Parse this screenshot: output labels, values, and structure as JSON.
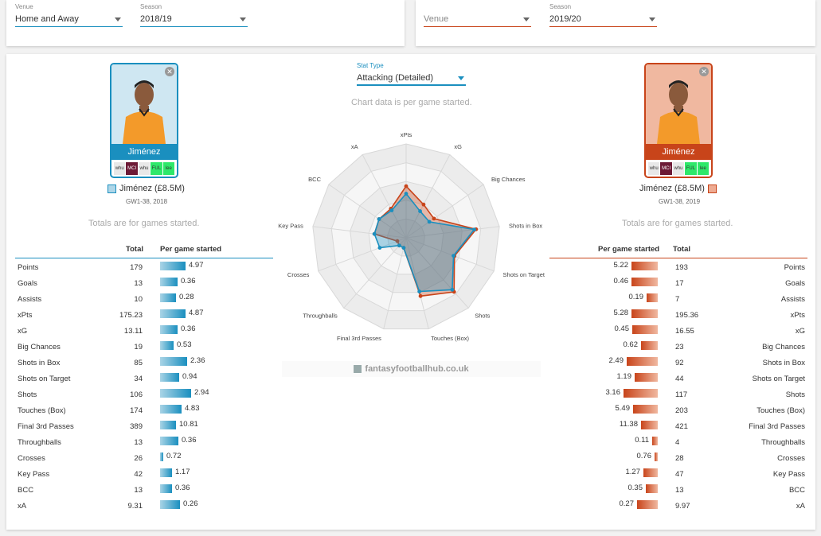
{
  "top_left": {
    "venue_label": "Venue",
    "venue_value": "Home and Away",
    "season_label": "Season",
    "season_value": "2018/19"
  },
  "top_right": {
    "venue_label": "",
    "venue_value": "Venue",
    "season_label": "Season",
    "season_value": "2019/20"
  },
  "stat_type": {
    "label": "Stat Type",
    "value": "Attacking (Detailed)"
  },
  "chart_note": "Chart data is per game started.",
  "watermark": "fantasyfootballhub.co.uk",
  "left_player": {
    "name": "Jiménez",
    "legend": "Jiménez (£8.5M)",
    "range": "GW1-38, 2018",
    "fixtures": [
      "whu",
      "MCI",
      "whu",
      "FUL",
      "lee"
    ],
    "color": "#1a8fbf"
  },
  "right_player": {
    "name": "Jiménez",
    "legend": "Jiménez (£8.5M)",
    "range": "GW1-38, 2019",
    "fixtures": [
      "whu",
      "MCI",
      "whu",
      "FUL",
      "lee"
    ],
    "color": "#c8441a"
  },
  "totals_note": "Totals are for games started.",
  "headers": {
    "total": "Total",
    "per_game": "Per game started"
  },
  "left_rows": [
    {
      "stat": "Points",
      "total": "179",
      "pg": "4.97",
      "frac": 0.46
    },
    {
      "stat": "Goals",
      "total": "13",
      "pg": "0.36",
      "frac": 0.32
    },
    {
      "stat": "Assists",
      "total": "10",
      "pg": "0.28",
      "frac": 0.29
    },
    {
      "stat": "xPts",
      "total": "175.23",
      "pg": "4.87",
      "frac": 0.45
    },
    {
      "stat": "xG",
      "total": "13.11",
      "pg": "0.36",
      "frac": 0.32
    },
    {
      "stat": "Big Chances",
      "total": "19",
      "pg": "0.53",
      "frac": 0.24
    },
    {
      "stat": "Shots in Box",
      "total": "85",
      "pg": "2.36",
      "frac": 0.49
    },
    {
      "stat": "Shots on Target",
      "total": "34",
      "pg": "0.94",
      "frac": 0.34
    },
    {
      "stat": "Shots",
      "total": "106",
      "pg": "2.94",
      "frac": 0.56
    },
    {
      "stat": "Touches (Box)",
      "total": "174",
      "pg": "4.83",
      "frac": 0.38
    },
    {
      "stat": "Final 3rd Passes",
      "total": "389",
      "pg": "10.81",
      "frac": 0.28
    },
    {
      "stat": "Throughballs",
      "total": "13",
      "pg": "0.36",
      "frac": 0.33
    },
    {
      "stat": "Crosses",
      "total": "26",
      "pg": "0.72",
      "frac": 0.06
    },
    {
      "stat": "Key Pass",
      "total": "42",
      "pg": "1.17",
      "frac": 0.22
    },
    {
      "stat": "BCC",
      "total": "13",
      "pg": "0.36",
      "frac": 0.22
    },
    {
      "stat": "xA",
      "total": "9.31",
      "pg": "0.26",
      "frac": 0.35
    }
  ],
  "right_rows": [
    {
      "stat": "Points",
      "total": "193",
      "pg": "5.22",
      "frac": 0.47
    },
    {
      "stat": "Goals",
      "total": "17",
      "pg": "0.46",
      "frac": 0.47
    },
    {
      "stat": "Assists",
      "total": "7",
      "pg": "0.19",
      "frac": 0.2
    },
    {
      "stat": "xPts",
      "total": "195.36",
      "pg": "5.28",
      "frac": 0.47
    },
    {
      "stat": "xG",
      "total": "16.55",
      "pg": "0.45",
      "frac": 0.46
    },
    {
      "stat": "Big Chances",
      "total": "23",
      "pg": "0.62",
      "frac": 0.3
    },
    {
      "stat": "Shots in Box",
      "total": "92",
      "pg": "2.49",
      "frac": 0.55
    },
    {
      "stat": "Shots on Target",
      "total": "44",
      "pg": "1.19",
      "frac": 0.42
    },
    {
      "stat": "Shots",
      "total": "117",
      "pg": "3.16",
      "frac": 0.62
    },
    {
      "stat": "Touches (Box)",
      "total": "203",
      "pg": "5.49",
      "frac": 0.44
    },
    {
      "stat": "Final 3rd Passes",
      "total": "421",
      "pg": "11.38",
      "frac": 0.3
    },
    {
      "stat": "Throughballs",
      "total": "4",
      "pg": "0.11",
      "frac": 0.1
    },
    {
      "stat": "Crosses",
      "total": "28",
      "pg": "0.76",
      "frac": 0.06
    },
    {
      "stat": "Key Pass",
      "total": "47",
      "pg": "1.27",
      "frac": 0.26
    },
    {
      "stat": "BCC",
      "total": "13",
      "pg": "0.35",
      "frac": 0.22
    },
    {
      "stat": "xA",
      "total": "9.97",
      "pg": "0.27",
      "frac": 0.37
    }
  ],
  "chart_data": {
    "type": "radar",
    "axes": [
      "xPts",
      "xG",
      "Big Chances",
      "Shots in Box",
      "Shots on Target",
      "Shots",
      "Touches (Box)",
      "Final 3rd Passes",
      "Throughballs",
      "Crosses",
      "Key Pass",
      "BCC",
      "xA"
    ],
    "rmax": 1,
    "series": [
      {
        "name": "Jiménez (£8.5M)",
        "values": [
          0.47,
          0.32,
          0.3,
          0.73,
          0.54,
          0.74,
          0.59,
          0.11,
          0.11,
          0.3,
          0.34,
          0.35,
          0.33
        ]
      },
      {
        "name": "Jiménez (£8.5M)",
        "values": [
          0.55,
          0.4,
          0.36,
          0.75,
          0.55,
          0.77,
          0.64,
          0.11,
          0.11,
          0.1,
          0.34,
          0.35,
          0.35
        ]
      }
    ]
  }
}
